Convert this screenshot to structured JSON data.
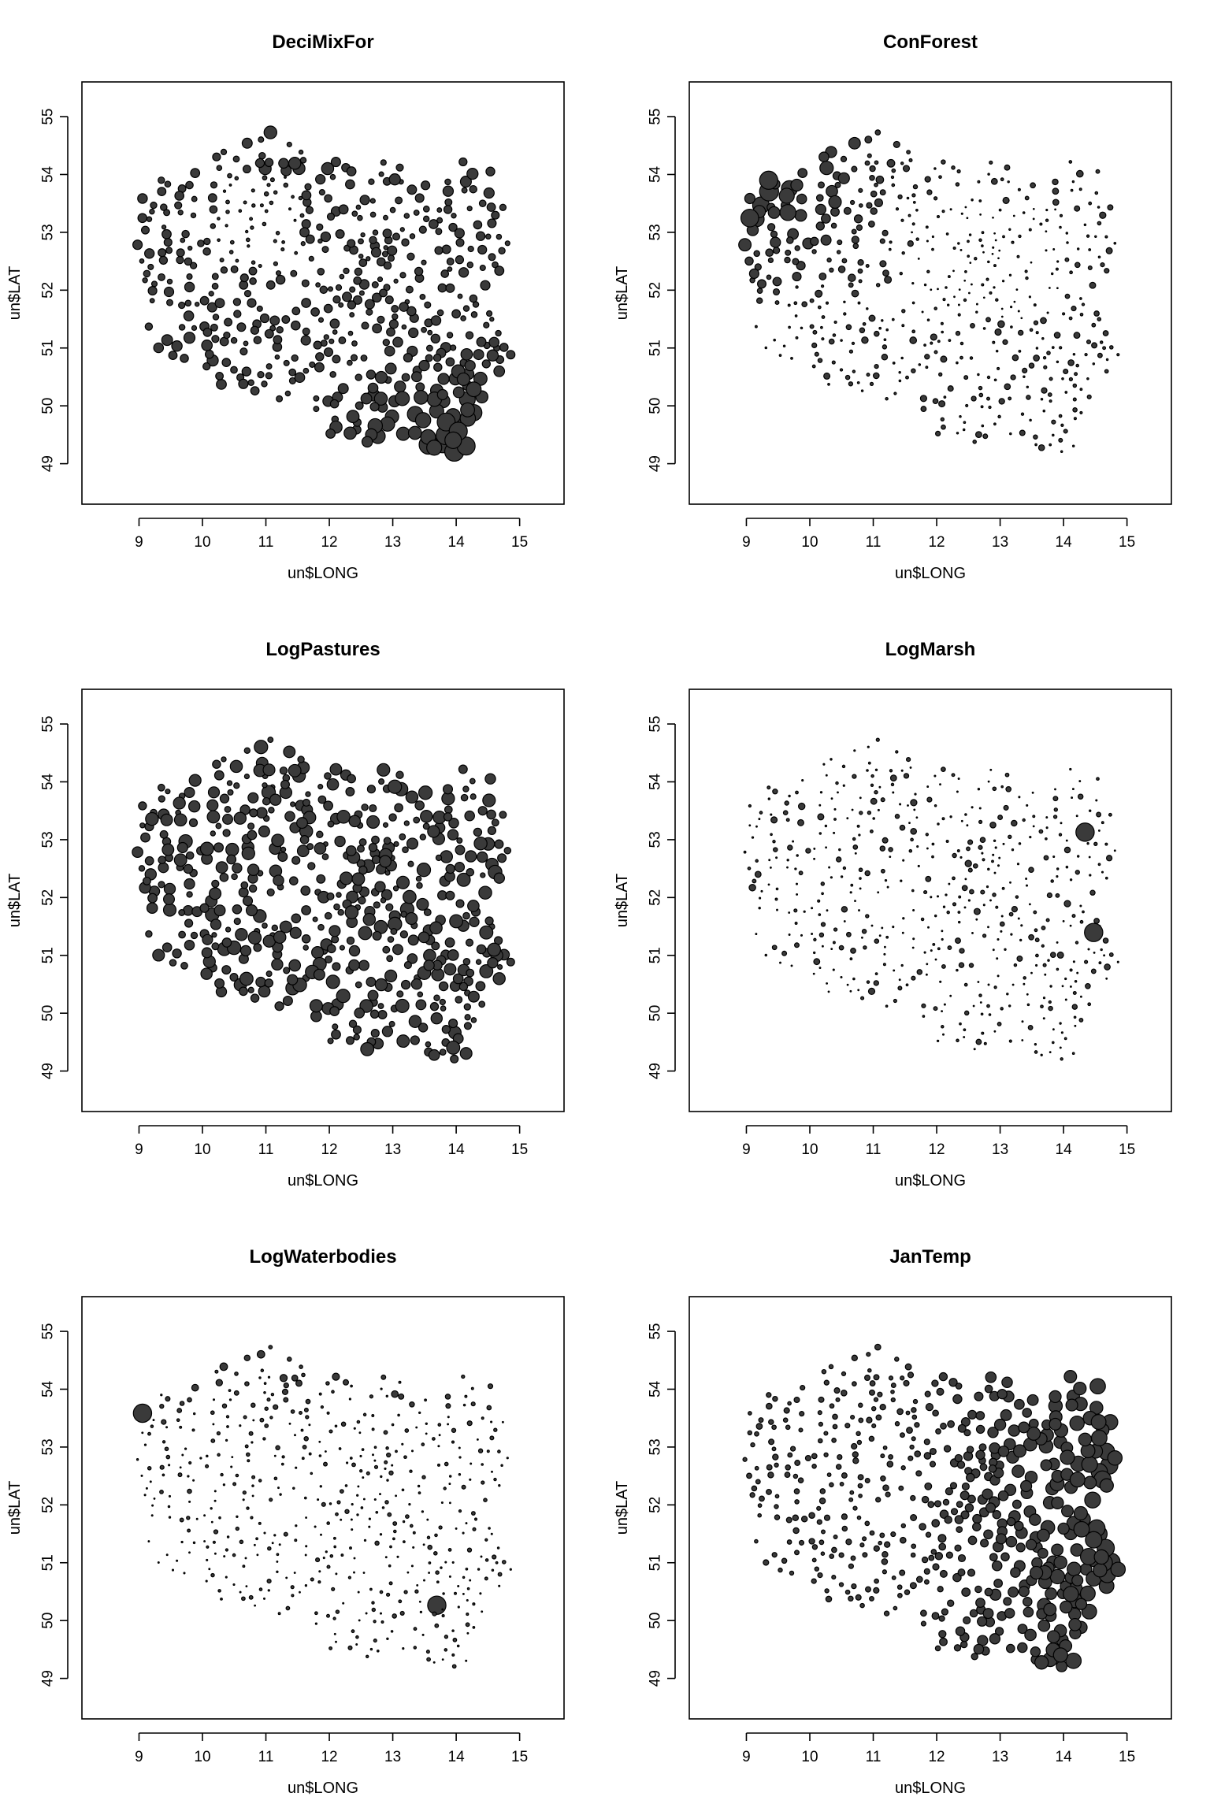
{
  "figure": {
    "point_color": "#3a3a3a",
    "point_stroke": "#000000"
  },
  "chart_data": [
    {
      "type": "scatter",
      "title": "DeciMixFor",
      "xlabel": "un$LONG",
      "ylabel": "un$LAT",
      "xlim": [
        8.1,
        15.7
      ],
      "ylim": [
        48.3,
        55.6
      ],
      "xticks": [
        9,
        10,
        11,
        12,
        13,
        14,
        15
      ],
      "yticks": [
        49,
        50,
        51,
        52,
        53,
        54,
        55
      ],
      "grid": false,
      "legend": "none",
      "size_pattern": "mixed",
      "size_max": 0,
      "size_focus": []
    },
    {
      "type": "scatter",
      "title": "ConForest",
      "xlabel": "un$LONG",
      "ylabel": "un$LAT",
      "xlim": [
        8.1,
        15.7
      ],
      "ylim": [
        48.3,
        55.6
      ],
      "xticks": [
        9,
        10,
        11,
        12,
        13,
        14,
        15
      ],
      "yticks": [
        49,
        50,
        51,
        52,
        53,
        54,
        55
      ],
      "grid": false,
      "legend": "none",
      "size_pattern": "west",
      "size_max": 0,
      "size_focus": []
    },
    {
      "type": "scatter",
      "title": "LogPastures",
      "xlabel": "un$LONG",
      "ylabel": "un$LAT",
      "xlim": [
        8.1,
        15.7
      ],
      "ylim": [
        48.3,
        55.6
      ],
      "xticks": [
        9,
        10,
        11,
        12,
        13,
        14,
        15
      ],
      "yticks": [
        49,
        50,
        51,
        52,
        53,
        54,
        55
      ],
      "grid": false,
      "legend": "none",
      "size_pattern": "uniform",
      "size_max": 0,
      "size_focus": []
    },
    {
      "type": "scatter",
      "title": "LogMarsh",
      "xlabel": "un$LONG",
      "ylabel": "un$LAT",
      "xlim": [
        8.1,
        15.7
      ],
      "ylim": [
        48.3,
        55.6
      ],
      "xticks": [
        9,
        10,
        11,
        12,
        13,
        14,
        15
      ],
      "yticks": [
        49,
        50,
        51,
        52,
        53,
        54,
        55
      ],
      "grid": false,
      "legend": "none",
      "size_pattern": "small",
      "size_max": 0,
      "size_focus": [
        [
          14.05,
          53.5
        ],
        [
          14.3,
          53.05
        ],
        [
          14.4,
          51.45
        ]
      ]
    },
    {
      "type": "scatter",
      "title": "LogWaterbodies",
      "xlabel": "un$LONG",
      "ylabel": "un$LAT",
      "xlim": [
        8.1,
        15.7
      ],
      "ylim": [
        48.3,
        55.6
      ],
      "xticks": [
        9,
        10,
        11,
        12,
        13,
        14,
        15
      ],
      "yticks": [
        49,
        50,
        51,
        52,
        53,
        54,
        55
      ],
      "grid": false,
      "legend": "none",
      "size_pattern": "north",
      "size_max": 0,
      "size_focus": [
        [
          10.7,
          54.7
        ],
        [
          13.65,
          50.3
        ],
        [
          9.0,
          53.9
        ],
        [
          9.1,
          53.6
        ]
      ]
    },
    {
      "type": "scatter",
      "title": "JanTemp",
      "xlabel": "un$LONG",
      "ylabel": "un$LAT",
      "xlim": [
        8.1,
        15.7
      ],
      "ylim": [
        48.3,
        55.6
      ],
      "xticks": [
        9,
        10,
        11,
        12,
        13,
        14,
        15
      ],
      "yticks": [
        49,
        50,
        51,
        52,
        53,
        54,
        55
      ],
      "grid": false,
      "legend": "none",
      "size_pattern": "east",
      "size_max": 0,
      "size_focus": []
    }
  ]
}
